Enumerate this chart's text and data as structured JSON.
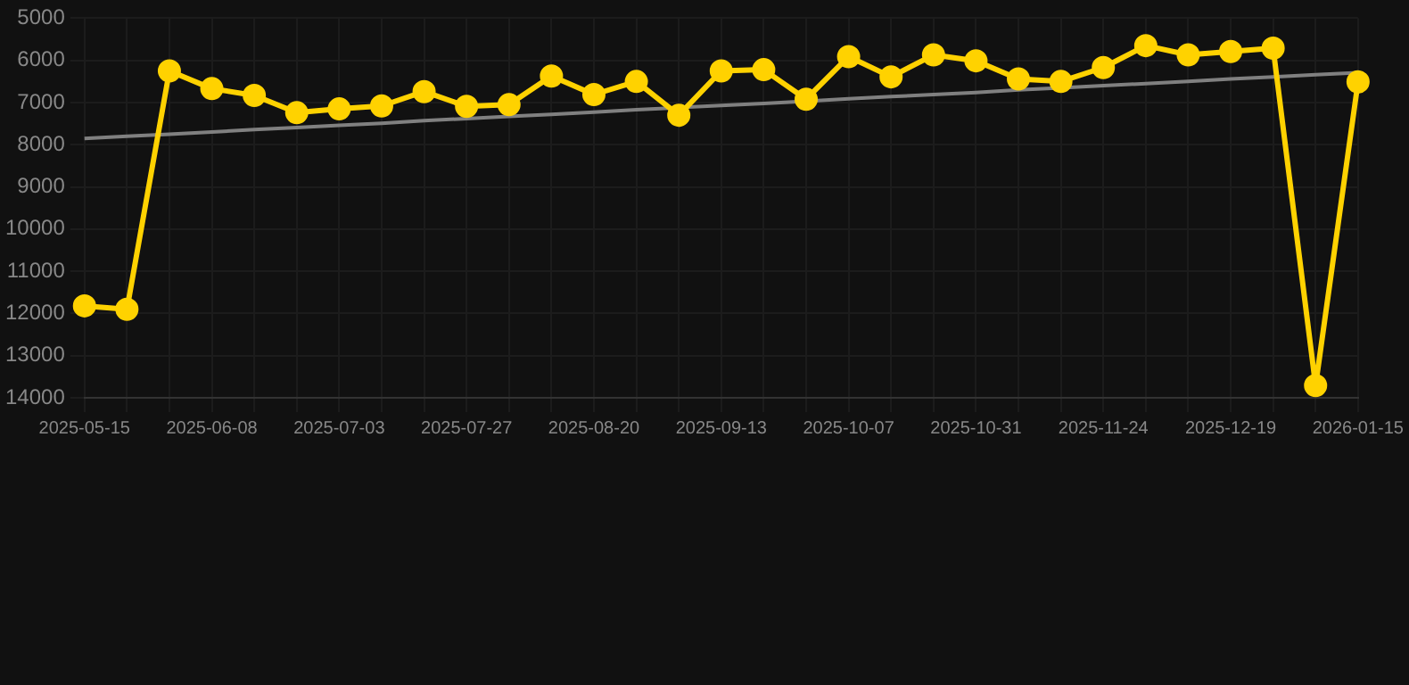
{
  "chart_data": {
    "type": "line",
    "categories": [
      "2025-05-15",
      null,
      null,
      "2025-06-08",
      null,
      null,
      "2025-07-03",
      null,
      null,
      "2025-07-27",
      null,
      null,
      "2025-08-20",
      null,
      null,
      "2025-09-13",
      null,
      null,
      "2025-10-07",
      null,
      null,
      "2025-10-31",
      null,
      null,
      "2025-11-24",
      null,
      null,
      "2025-12-19",
      null,
      null,
      "2026-01-15"
    ],
    "series": [
      {
        "type": "line",
        "color": "#ffd200",
        "marker": "circle",
        "values": [
          11820,
          11900,
          6250,
          6670,
          6830,
          7240,
          7150,
          7080,
          6740,
          7090,
          7050,
          6370,
          6810,
          6500,
          7300,
          6250,
          6220,
          6920,
          5910,
          6390,
          5870,
          6010,
          6440,
          6500,
          6170,
          5650,
          5870,
          5790,
          5710,
          13710,
          6510
        ]
      },
      {
        "type": "line",
        "color": "#808080",
        "marker": "none",
        "values": [
          7850,
          7800,
          7750,
          7700,
          7640,
          7590,
          7540,
          7490,
          7430,
          7380,
          7330,
          7280,
          7230,
          7170,
          7120,
          7070,
          7020,
          6970,
          6910,
          6860,
          6810,
          6760,
          6700,
          6650,
          6600,
          6550,
          6500,
          6440,
          6390,
          6340,
          6290
        ]
      }
    ],
    "ylim": [
      14000,
      5000
    ],
    "yticks": [
      5000,
      6000,
      7000,
      8000,
      9000,
      10000,
      11000,
      12000,
      13000,
      14000
    ],
    "grid": true,
    "legend": false
  }
}
